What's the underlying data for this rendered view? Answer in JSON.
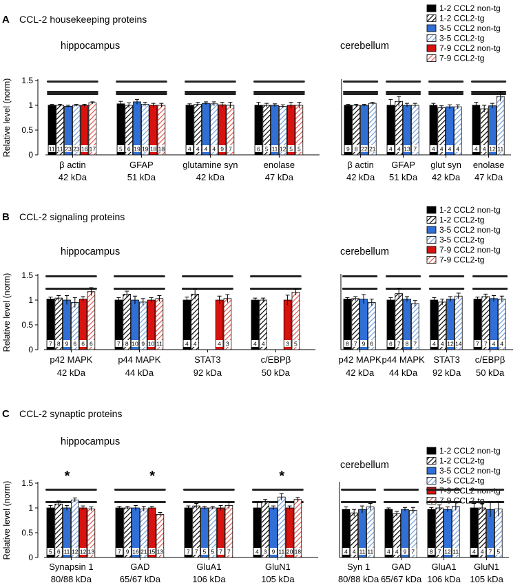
{
  "series_names": [
    "1-2 CCL2 non-tg",
    "1-2 CCL2-tg",
    "3-5 CCL2 non-tg",
    "3-5 CCL2-tg",
    "7-9 CCL2 non-tg",
    "7-9 CCL2-tg"
  ],
  "colors": {
    "black": "#000000",
    "blue": "#2f6fd6",
    "light_blue": "#8fb4ea",
    "red": "#d8120f",
    "light_red": "#f09a90"
  },
  "chart_data": [
    {
      "type": "bar",
      "panel": "A",
      "title": "CCL-2 housekeeping proteins",
      "ylabel": "Relative level (norm)",
      "ylim": [
        0,
        1.5
      ],
      "yticks": [
        0,
        0.5,
        1,
        1.5
      ],
      "regions": [
        {
          "name": "hippocampus",
          "groups": [
            {
              "label": "β actin",
              "kda": "42 kDa",
              "values": [
                1.0,
                1.0,
                0.98,
                1.0,
                1.0,
                1.05
              ],
              "errors": [
                0.02,
                0.02,
                0.02,
                0.02,
                0.02,
                0.02
              ],
              "n": [
                "11",
                "11",
                "23",
                "23",
                "16",
                "17"
              ]
            },
            {
              "label": "GFAP",
              "kda": "51 kDa",
              "values": [
                1.03,
                1.0,
                1.07,
                1.02,
                1.0,
                1.0
              ],
              "errors": [
                0.05,
                0.05,
                0.05,
                0.04,
                0.04,
                0.04
              ],
              "n": [
                "5",
                "6",
                "19",
                "19",
                "18",
                "18"
              ]
            },
            {
              "label": "glutamine syn",
              "kda": "42 kDa",
              "values": [
                1.0,
                1.02,
                1.04,
                1.03,
                1.01,
                1.0
              ],
              "errors": [
                0.03,
                0.04,
                0.03,
                0.04,
                0.05,
                0.06
              ],
              "n": [
                "4",
                "4",
                "4",
                "4",
                "9",
                "7"
              ]
            },
            {
              "label": "enolase",
              "kda": "47 kDa",
              "values": [
                1.0,
                1.0,
                1.0,
                0.98,
                1.0,
                1.0
              ],
              "errors": [
                0.06,
                0.04,
                0.03,
                0.03,
                0.06,
                0.06
              ],
              "n": [
                "6",
                "5",
                "11",
                "12",
                "5",
                "5"
              ]
            }
          ]
        },
        {
          "name": "cerebellum",
          "groups": [
            {
              "label": "β actin",
              "kda": "42 kDa",
              "values": [
                1.0,
                1.0,
                1.0,
                1.04
              ],
              "errors": [
                0.02,
                0.02,
                0.02,
                0.02
              ],
              "n": [
                "9",
                "8",
                "22",
                "21"
              ]
            },
            {
              "label": "GFAP",
              "kda": "51 kDa",
              "values": [
                1.0,
                1.08,
                1.0,
                1.0
              ],
              "errors": [
                0.12,
                0.1,
                0.04,
                0.04
              ],
              "n": [
                "4",
                "4",
                "13",
                "7"
              ]
            },
            {
              "label": "glut syn",
              "kda": "42 kDa",
              "values": [
                1.0,
                0.95,
                0.97,
                0.97
              ],
              "errors": [
                0.04,
                0.04,
                0.04,
                0.04
              ],
              "n": [
                "4",
                "4",
                "4",
                "4"
              ]
            },
            {
              "label": "enolase",
              "kda": "47 kDa",
              "values": [
                1.0,
                0.93,
                0.99,
                1.18
              ],
              "errors": [
                0.06,
                0.07,
                0.05,
                0.1
              ],
              "n": [
                "4",
                "4",
                "12",
                "11"
              ]
            }
          ]
        }
      ]
    },
    {
      "type": "bar",
      "panel": "B",
      "title": "CCL-2 signaling proteins",
      "ylabel": "Relative level (norm)",
      "ylim": [
        0,
        1.5
      ],
      "yticks": [
        0,
        0.5,
        1,
        1.5
      ],
      "regions": [
        {
          "name": "hippocampus",
          "groups": [
            {
              "label": "p42 MAPK",
              "kda": "42 kDa",
              "values": [
                1.02,
                1.04,
                1.0,
                0.95,
                1.02,
                1.17
              ],
              "errors": [
                0.04,
                0.05,
                0.09,
                0.1,
                0.05,
                0.08
              ],
              "n": [
                "7",
                "8",
                "9",
                "6",
                "6",
                "6"
              ]
            },
            {
              "label": "p44 MAPK",
              "kda": "44 kDa",
              "values": [
                1.0,
                1.12,
                1.0,
                0.96,
                1.0,
                1.03
              ],
              "errors": [
                0.05,
                0.06,
                0.08,
                0.07,
                0.05,
                0.06
              ],
              "n": [
                "7",
                "8",
                "10",
                "9",
                "10",
                "11"
              ]
            },
            {
              "label": "STAT3",
              "kda": "92 kDa",
              "values": [
                1.0,
                1.12,
                null,
                null,
                1.0,
                1.03
              ],
              "errors": [
                0.06,
                0.1,
                null,
                null,
                0.08,
                0.08
              ],
              "n": [
                "4",
                "4",
                "",
                "",
                "4",
                "3"
              ]
            },
            {
              "label": "c/EBPβ",
              "kda": "50 kDa",
              "values": [
                1.0,
                1.0,
                null,
                null,
                1.0,
                1.16
              ],
              "errors": [
                0.04,
                0.04,
                null,
                null,
                0.1,
                0.06
              ],
              "n": [
                "4",
                "4",
                "",
                "",
                "3",
                "5"
              ]
            }
          ]
        },
        {
          "name": "cerebellum",
          "groups": [
            {
              "label": "p42 MAPK",
              "kda": "42 kDa",
              "values": [
                1.02,
                1.03,
                1.02,
                0.95
              ],
              "errors": [
                0.03,
                0.04,
                0.09,
                0.07
              ],
              "n": [
                "8",
                "7",
                "9",
                "6"
              ]
            },
            {
              "label": "p44 MAPK",
              "kda": "44 kDa",
              "values": [
                1.0,
                1.13,
                1.02,
                0.93
              ],
              "errors": [
                0.05,
                0.1,
                0.05,
                0.06
              ],
              "n": [
                "6",
                "7",
                "8",
                "7"
              ]
            },
            {
              "label": "STAT3",
              "kda": "92 kDa",
              "values": [
                1.0,
                0.96,
                1.02,
                1.08
              ],
              "errors": [
                0.05,
                0.06,
                0.05,
                0.06
              ],
              "n": [
                "4",
                "4",
                "12",
                "14"
              ]
            },
            {
              "label": "c/EBPβ",
              "kda": "50 kDa",
              "values": [
                1.02,
                1.07,
                1.03,
                1.02
              ],
              "errors": [
                0.04,
                0.05,
                0.06,
                0.06
              ],
              "n": [
                "7",
                "7",
                "4",
                "4"
              ]
            }
          ]
        }
      ]
    },
    {
      "type": "bar",
      "panel": "C",
      "title": "CCL-2 synaptic proteins",
      "ylabel": "Relative level (norm)",
      "ylim": [
        0,
        1.5
      ],
      "yticks": [
        0,
        0.5,
        1,
        1.5
      ],
      "annotation": "*",
      "regions": [
        {
          "name": "hippocampus",
          "groups": [
            {
              "label": "Synapsin 1",
              "kda": "80/88 kDa",
              "values": [
                1.0,
                1.08,
                1.0,
                1.16,
                1.0,
                0.98
              ],
              "errors": [
                0.05,
                0.06,
                0.05,
                0.04,
                0.04,
                0.04
              ],
              "n": [
                "5",
                "6",
                "11",
                "12",
                "12",
                "13"
              ],
              "star": 2
            },
            {
              "label": "GAD",
              "kda": "65/67 kDa",
              "values": [
                1.0,
                1.0,
                1.0,
                0.98,
                1.0,
                0.87
              ],
              "errors": [
                0.03,
                0.03,
                0.05,
                0.05,
                0.03,
                0.04
              ],
              "n": [
                "7",
                "9",
                "16",
                "21",
                "15",
                "13"
              ],
              "star": 4
            },
            {
              "label": "GluA1",
              "kda": "106 kDa",
              "values": [
                1.0,
                1.04,
                1.0,
                1.0,
                1.0,
                1.05
              ],
              "errors": [
                0.04,
                0.05,
                0.03,
                0.03,
                0.05,
                0.07
              ],
              "n": [
                "7",
                "7",
                "5",
                "5",
                "7",
                "7"
              ]
            },
            {
              "label": "GluN1",
              "kda": "105 kDa",
              "values": [
                1.0,
                1.12,
                1.0,
                1.22,
                1.0,
                1.17
              ],
              "errors": [
                0.12,
                0.05,
                0.04,
                0.07,
                0.04,
                0.04
              ],
              "n": [
                "4",
                "3",
                "9",
                "11",
                "20",
                "18"
              ],
              "star": 3
            }
          ]
        },
        {
          "name": "cerebellum",
          "groups": [
            {
              "label": "Syn 1",
              "kda": "80/88 kDa",
              "values": [
                0.97,
                0.9,
                0.97,
                1.02
              ],
              "errors": [
                0.05,
                0.07,
                0.07,
                0.07
              ],
              "n": [
                "4",
                "4",
                "11",
                "11"
              ]
            },
            {
              "label": "GAD",
              "kda": "65/67 kDa",
              "values": [
                0.97,
                0.88,
                0.97,
                0.95
              ],
              "errors": [
                0.03,
                0.05,
                0.04,
                0.06
              ],
              "n": [
                "4",
                "4",
                "9",
                "7"
              ]
            },
            {
              "label": "GluA1",
              "kda": "106 kDa",
              "values": [
                0.97,
                1.0,
                0.97,
                1.03
              ],
              "errors": [
                0.04,
                0.06,
                0.05,
                0.08
              ],
              "n": [
                "8",
                "7",
                "12",
                "11"
              ]
            },
            {
              "label": "GluN1",
              "kda": "105 kDa",
              "values": [
                1.0,
                1.0,
                0.97,
                0.98
              ],
              "errors": [
                0.09,
                0.09,
                0.15,
                0.15
              ],
              "n": [
                "4",
                "4",
                "7",
                "5"
              ]
            }
          ]
        }
      ]
    }
  ]
}
